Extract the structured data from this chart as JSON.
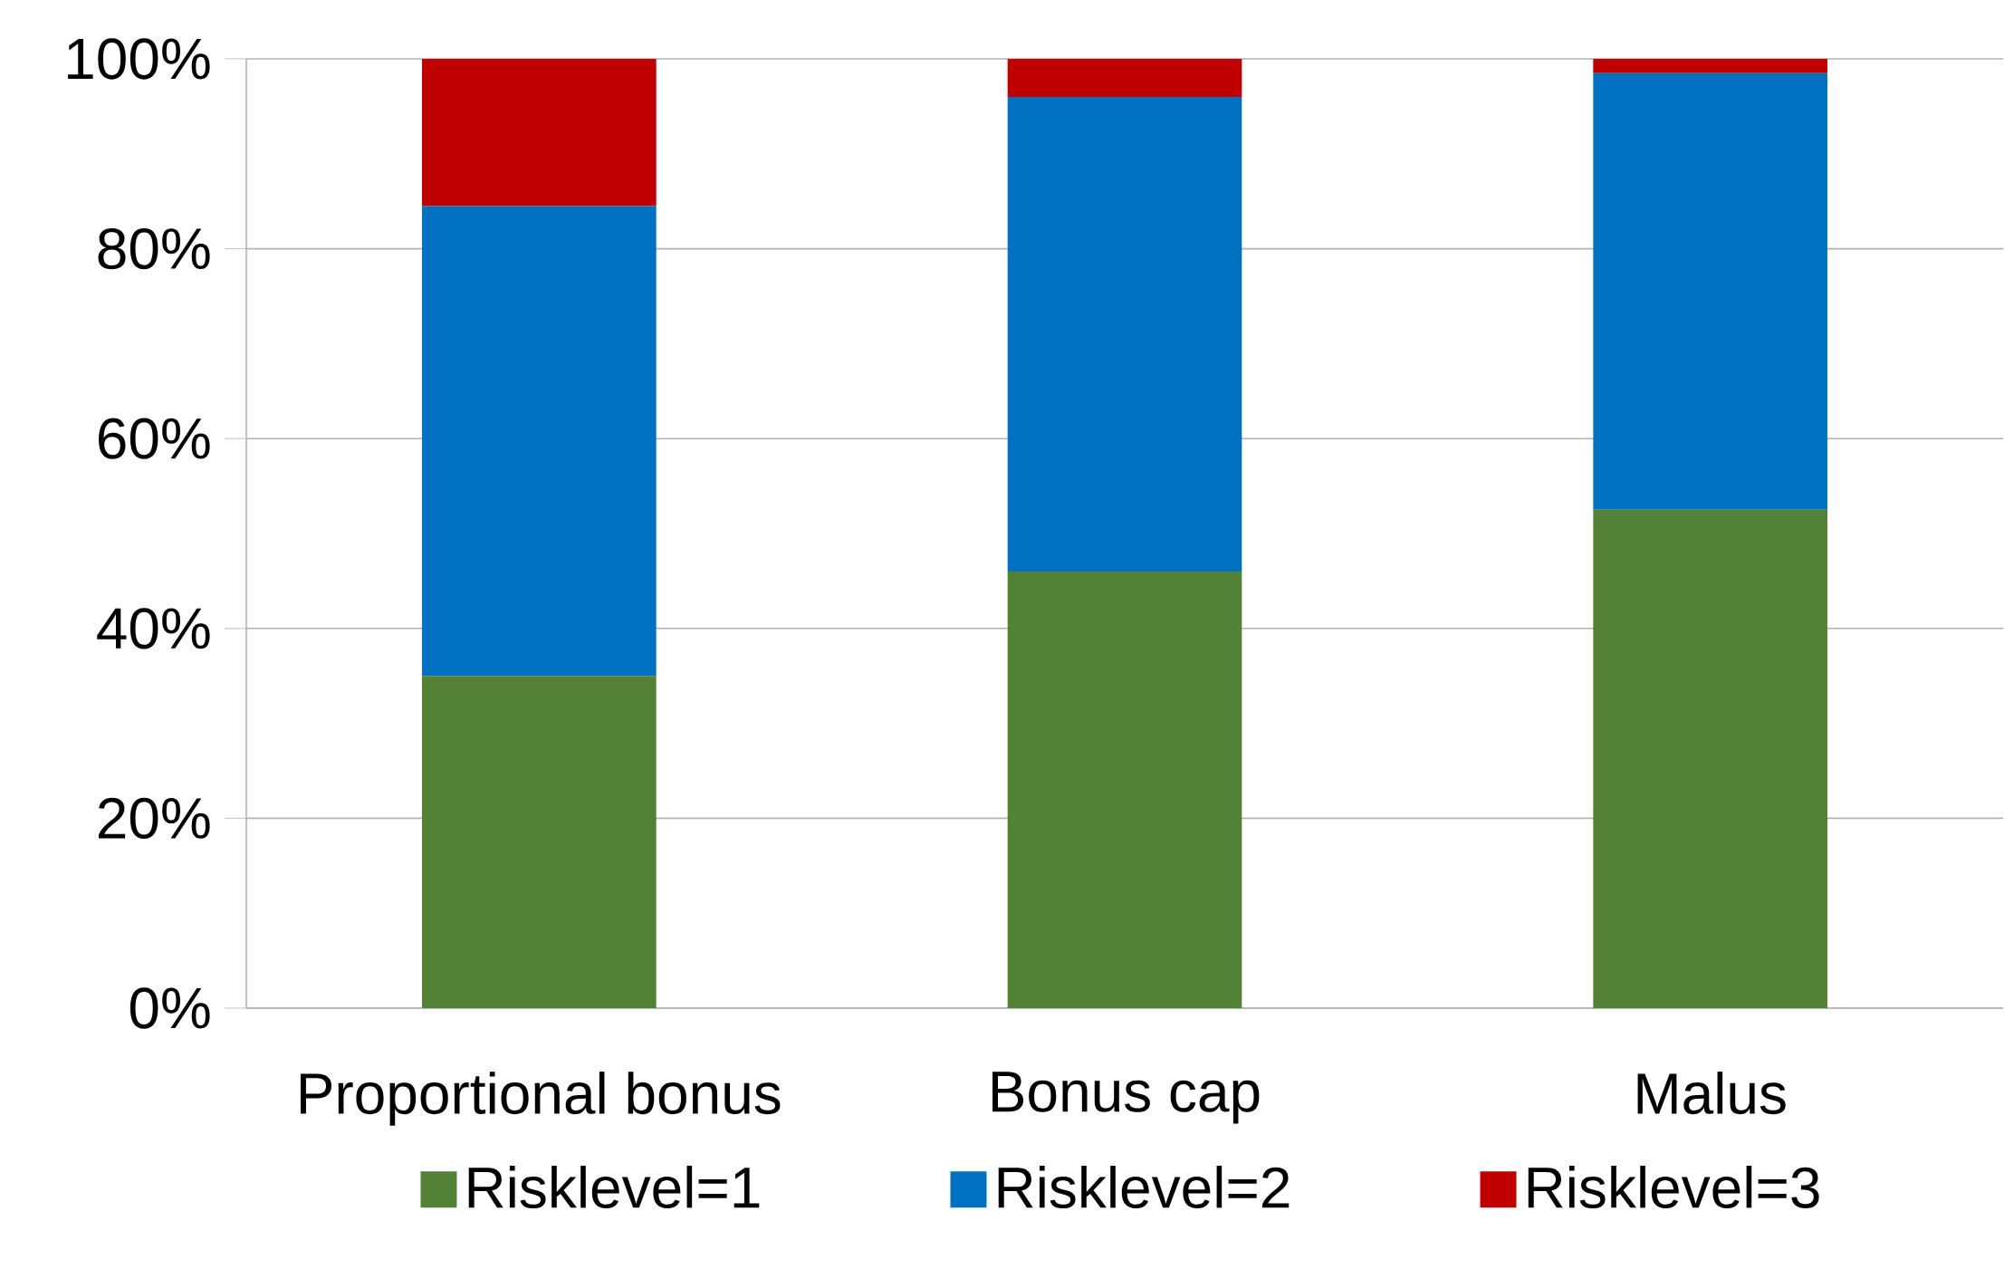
{
  "chart_data": {
    "type": "bar",
    "stacked": true,
    "categories": [
      "Proportional bonus",
      "Bonus cap",
      "Malus"
    ],
    "series": [
      {
        "name": "Risklevel=1",
        "color": "#538135",
        "values": [
          35,
          46,
          52.5
        ]
      },
      {
        "name": "Risklevel=2",
        "color": "#0070c0",
        "values": [
          49.5,
          50,
          46
        ]
      },
      {
        "name": "Risklevel=3",
        "color": "#c00000",
        "values": [
          15.5,
          4,
          1.5
        ]
      }
    ],
    "ylim": [
      0,
      100
    ],
    "yticks": [
      {
        "value": 0,
        "label": "0%"
      },
      {
        "value": 20,
        "label": "20%"
      },
      {
        "value": 40,
        "label": "40%"
      },
      {
        "value": 60,
        "label": "60%"
      },
      {
        "value": 80,
        "label": "80%"
      },
      {
        "value": 100,
        "label": "100%"
      }
    ],
    "grid": "y",
    "legend": "bottom"
  }
}
